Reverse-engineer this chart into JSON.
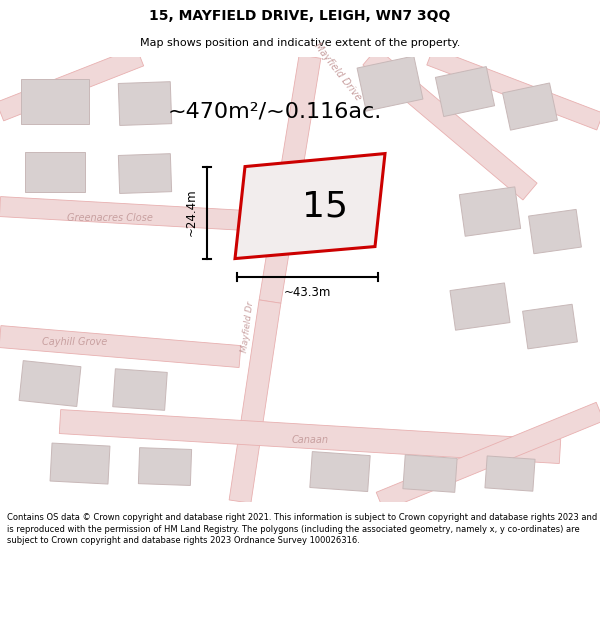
{
  "title_line1": "15, MAYFIELD DRIVE, LEIGH, WN7 3QQ",
  "title_line2": "Map shows position and indicative extent of the property.",
  "area_text": "~470m²/~0.116ac.",
  "property_number": "15",
  "dim_width": "~43.3m",
  "dim_height": "~24.4m",
  "footer_text": "Contains OS data © Crown copyright and database right 2021. This information is subject to Crown copyright and database rights 2023 and is reproduced with the permission of HM Land Registry. The polygons (including the associated geometry, namely x, y co-ordinates) are subject to Crown copyright and database rights 2023 Ordnance Survey 100026316.",
  "bg_color": "#f2eded",
  "road_color": "#f0d8d8",
  "road_outline": "#e8b0b0",
  "building_fill": "#d8d0d0",
  "building_outline": "#c8b8b8",
  "property_color": "#cc0000",
  "street_label_color": "#c8a0a0",
  "title_color": "#000000",
  "footer_color": "#000000",
  "title_fontsize": 10,
  "subtitle_fontsize": 8,
  "area_fontsize": 16,
  "prop_num_fontsize": 26,
  "dim_fontsize": 8.5,
  "street_fontsize": 7,
  "footer_fontsize": 6
}
